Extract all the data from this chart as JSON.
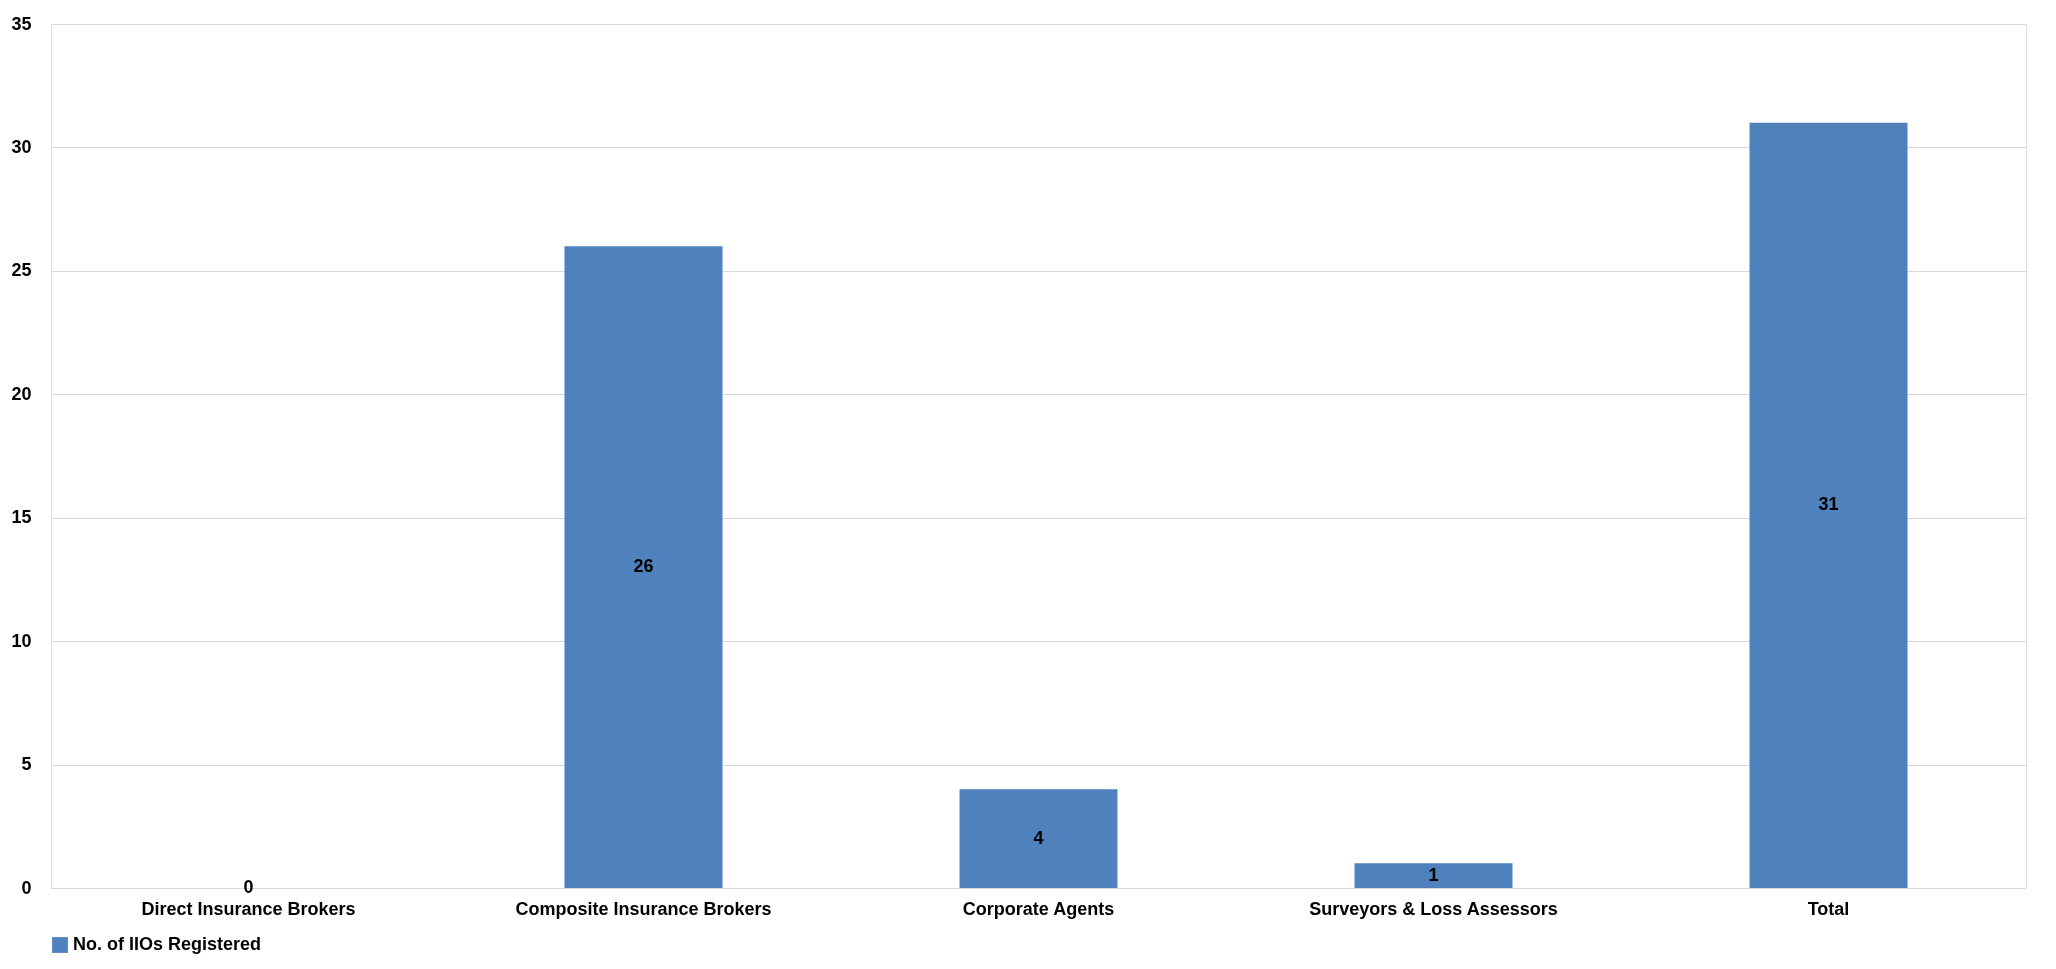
{
  "chart_data": {
    "type": "bar",
    "categories": [
      "Direct Insurance Brokers",
      "Composite Insurance Brokers",
      "Corporate Agents",
      "Surveyors & Loss Assessors",
      "Total"
    ],
    "series": [
      {
        "name": "No. of IIOs Registered",
        "color": "#4f81bd",
        "values": [
          0,
          26,
          4,
          1,
          31
        ]
      }
    ],
    "ylim": [
      0,
      35
    ],
    "yticks": [
      0,
      5,
      10,
      15,
      20,
      25,
      30,
      35
    ],
    "grid": "y",
    "legend": "bottom",
    "data_labels": true
  }
}
